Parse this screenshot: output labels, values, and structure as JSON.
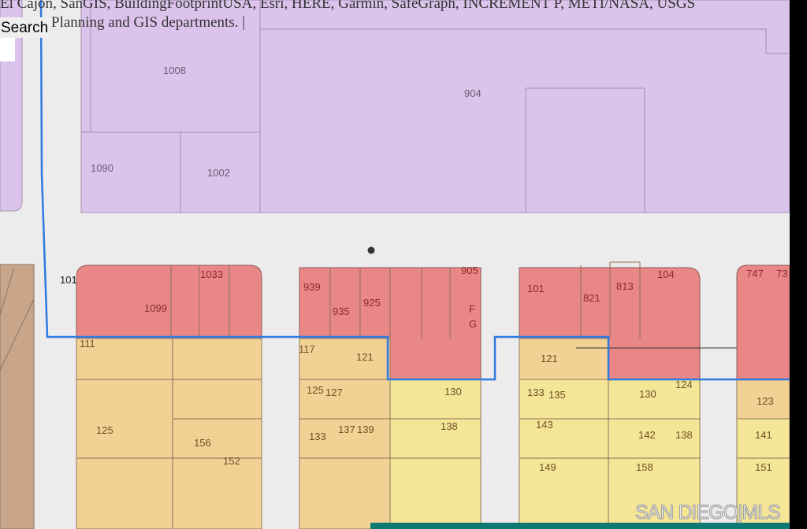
{
  "attribution": {
    "line1": "El Cajon, SanGIS, BuildingFootprintUSA, Esri, HERE, Garmin, SafeGraph, INCREMENT P, METI/NASA, USGS",
    "line2": "Planning and GIS departments. |"
  },
  "search": {
    "label": "Search"
  },
  "watermark": "SAN DIEGO|MLS",
  "colors": {
    "residential_commercial_purple": "#dcc3ec",
    "commercial_red": "#e98787",
    "multi_family_orange": "#f3d194",
    "single_family_yellow": "#f5e597",
    "open_space_brown": "#c9a68a",
    "boundary_line_blue": "#2f7ae0",
    "road": "#ececec"
  },
  "parcels": {
    "p1008": "1008",
    "p904": "904",
    "p1090": "1090",
    "p1002": "1002",
    "p101a": "101",
    "p1033": "1033",
    "p1099": "1099",
    "p111": "111",
    "p125a": "125",
    "p156": "156",
    "p152": "152",
    "p939": "939",
    "p935": "935",
    "p925": "925",
    "p905": "905",
    "pF": "F",
    "pG": "G",
    "p117": "117",
    "p121a": "121",
    "p125b": "125",
    "p127": "127",
    "p133a": "133",
    "p137": "137",
    "p139": "139",
    "p130a": "130",
    "p138a": "138",
    "p101b": "101",
    "p821": "821",
    "p813": "813",
    "p104": "104",
    "p121b": "121",
    "p133b": "133",
    "p135": "135",
    "p130b": "130",
    "p124": "124",
    "p143": "143",
    "p142": "142",
    "p138b": "138",
    "p149": "149",
    "p158": "158",
    "p747": "747",
    "p73": "73",
    "p123": "123",
    "p141": "141",
    "p151": "151"
  }
}
